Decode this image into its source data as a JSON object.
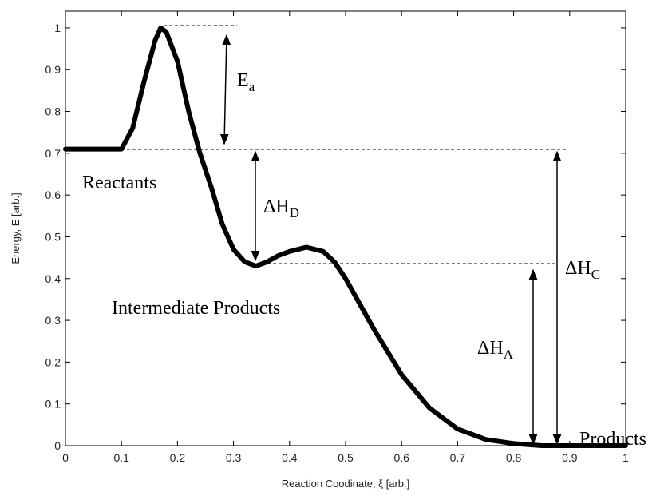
{
  "chart_data": {
    "type": "line",
    "xlabel": "Reaction Coodinate, ξ [arb.]",
    "ylabel": "Energy, E [arb.]",
    "x": [
      0,
      0.05,
      0.1,
      0.12,
      0.14,
      0.16,
      0.17,
      0.18,
      0.2,
      0.22,
      0.24,
      0.26,
      0.28,
      0.3,
      0.32,
      0.34,
      0.36,
      0.38,
      0.4,
      0.43,
      0.46,
      0.48,
      0.5,
      0.55,
      0.6,
      0.65,
      0.7,
      0.75,
      0.8,
      0.85,
      0.9,
      1.0
    ],
    "values": [
      0.71,
      0.71,
      0.71,
      0.76,
      0.87,
      0.97,
      1.0,
      0.99,
      0.92,
      0.8,
      0.7,
      0.62,
      0.53,
      0.47,
      0.44,
      0.43,
      0.44,
      0.455,
      0.465,
      0.475,
      0.465,
      0.44,
      0.4,
      0.28,
      0.17,
      0.09,
      0.04,
      0.015,
      0.005,
      0,
      0,
      0
    ],
    "color": "#000000",
    "xlim": [
      0,
      1
    ],
    "ylim": [
      0,
      1.04
    ],
    "xticks": [
      0,
      0.1,
      0.2,
      0.3,
      0.4,
      0.5,
      0.6,
      0.7,
      0.8,
      0.9,
      1
    ],
    "yticks": [
      0,
      0.1,
      0.2,
      0.3,
      0.4,
      0.5,
      0.6,
      0.7,
      0.8,
      0.9,
      1
    ],
    "grid": false,
    "annotations": [
      {
        "text": "Reactants"
      },
      {
        "text": "Intermediate Products"
      },
      {
        "text": "Products"
      },
      {
        "text": "E",
        "sub": "a"
      },
      {
        "text": "ΔH",
        "sub": "D"
      },
      {
        "text": "ΔH",
        "sub": "C"
      },
      {
        "text": "ΔH",
        "sub": "A"
      }
    ]
  }
}
